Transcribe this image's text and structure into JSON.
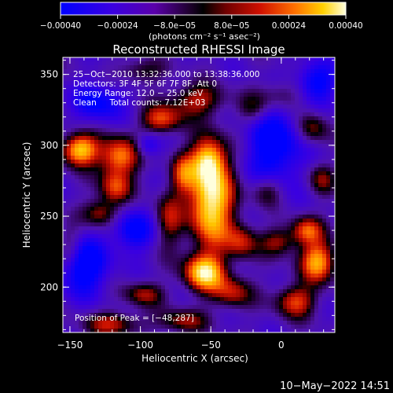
{
  "chart_data": {
    "type": "heatmap",
    "title": "Reconstructed RHESSI Image",
    "xlabel": "Heliocentric X (arcsec)",
    "ylabel": "Heliocentric Y (arcsec)",
    "xlim": [
      -155,
      38
    ],
    "ylim": [
      168,
      362
    ],
    "xticks": [
      -150,
      -100,
      -50,
      0
    ],
    "xtick_labels": [
      "−150",
      "−100",
      "−50",
      "0"
    ],
    "yticks": [
      200,
      250,
      300,
      350
    ],
    "ytick_labels": [
      "200",
      "250",
      "300",
      "350"
    ],
    "colorbar": {
      "range": [
        -0.0004,
        0.0004
      ],
      "ticks": [
        -0.0004,
        -0.00024,
        -8e-05,
        8e-05,
        0.00024,
        0.0004
      ],
      "tick_labels": [
        "−0.00040",
        "−0.00024",
        "−8.0e−05",
        "8.0e−05",
        "0.00024",
        "0.00040"
      ],
      "units_text": "(photons cm⁻² s⁻¹ asec⁻²)"
    },
    "annotations": [
      "25−Oct−2010 13:32:36.000 to 13:38:36.000",
      "Detectors: 3F 4F 5F 6F 7F 8F, Att 0",
      "Energy Range: 12.0 − 25.0 keV",
      "Clean     Total counts: 7.12E+03"
    ],
    "peak_label": "Position of Peak = [−48,287]",
    "peak": [
      -48,
      287
    ],
    "sources": [
      {
        "x": -50,
        "y": 262,
        "amp": 1.0,
        "sx": 11,
        "sy": 24
      },
      {
        "x": -52,
        "y": 290,
        "amp": 0.55,
        "sx": 8,
        "sy": 10
      },
      {
        "x": -143,
        "y": 297,
        "amp": 0.85,
        "sx": 9,
        "sy": 8
      },
      {
        "x": -115,
        "y": 292,
        "amp": 0.7,
        "sx": 10,
        "sy": 10
      },
      {
        "x": -85,
        "y": 318,
        "amp": 0.55,
        "sx": 10,
        "sy": 7
      },
      {
        "x": -60,
        "y": 332,
        "amp": 0.45,
        "sx": 14,
        "sy": 8
      },
      {
        "x": -118,
        "y": 270,
        "amp": 0.5,
        "sx": 8,
        "sy": 8
      },
      {
        "x": -128,
        "y": 252,
        "amp": 0.45,
        "sx": 9,
        "sy": 7
      },
      {
        "x": -80,
        "y": 248,
        "amp": 0.4,
        "sx": 7,
        "sy": 14
      },
      {
        "x": -55,
        "y": 210,
        "amp": 0.85,
        "sx": 10,
        "sy": 9
      },
      {
        "x": -35,
        "y": 196,
        "amp": 0.45,
        "sx": 10,
        "sy": 8
      },
      {
        "x": -98,
        "y": 195,
        "amp": 0.4,
        "sx": 10,
        "sy": 6
      },
      {
        "x": -120,
        "y": 174,
        "amp": 0.45,
        "sx": 14,
        "sy": 6
      },
      {
        "x": -70,
        "y": 176,
        "amp": 0.4,
        "sx": 12,
        "sy": 6
      },
      {
        "x": -28,
        "y": 232,
        "amp": 0.45,
        "sx": 8,
        "sy": 9
      },
      {
        "x": -2,
        "y": 232,
        "amp": 0.4,
        "sx": 9,
        "sy": 7
      },
      {
        "x": 26,
        "y": 218,
        "amp": 0.75,
        "sx": 9,
        "sy": 10
      },
      {
        "x": 18,
        "y": 240,
        "amp": 0.55,
        "sx": 8,
        "sy": 7
      },
      {
        "x": 10,
        "y": 190,
        "amp": 0.55,
        "sx": 10,
        "sy": 8
      },
      {
        "x": -10,
        "y": 268,
        "amp": 0.4,
        "sx": 8,
        "sy": 8
      },
      {
        "x": 0,
        "y": 335,
        "amp": 0.35,
        "sx": 12,
        "sy": 8
      },
      {
        "x": 22,
        "y": 312,
        "amp": 0.4,
        "sx": 8,
        "sy": 8
      },
      {
        "x": -20,
        "y": 325,
        "amp": 0.3,
        "sx": 8,
        "sy": 8
      },
      {
        "x": 28,
        "y": 276,
        "amp": 0.35,
        "sx": 7,
        "sy": 8
      },
      {
        "x": -150,
        "y": 228,
        "amp": 0.3,
        "sx": 6,
        "sy": 10
      },
      {
        "x": -100,
        "y": 352,
        "amp": 0.3,
        "sx": 12,
        "sy": 6
      },
      {
        "x": -70,
        "y": 280,
        "amp": 0.45,
        "sx": 6,
        "sy": 10
      }
    ],
    "negative_regions": [
      {
        "x": -140,
        "y": 215,
        "amp": 0.6,
        "sx": 12,
        "sy": 14
      },
      {
        "x": -105,
        "y": 240,
        "amp": 0.5,
        "sx": 10,
        "sy": 10
      },
      {
        "x": -5,
        "y": 300,
        "amp": 0.55,
        "sx": 14,
        "sy": 22
      },
      {
        "x": 25,
        "y": 345,
        "amp": 0.5,
        "sx": 10,
        "sy": 10
      },
      {
        "x": -95,
        "y": 300,
        "amp": 0.35,
        "sx": 6,
        "sy": 6
      },
      {
        "x": -130,
        "y": 330,
        "amp": 0.45,
        "sx": 12,
        "sy": 10
      }
    ]
  },
  "footer": {
    "timestamp": "10−May−2022 14:51"
  }
}
